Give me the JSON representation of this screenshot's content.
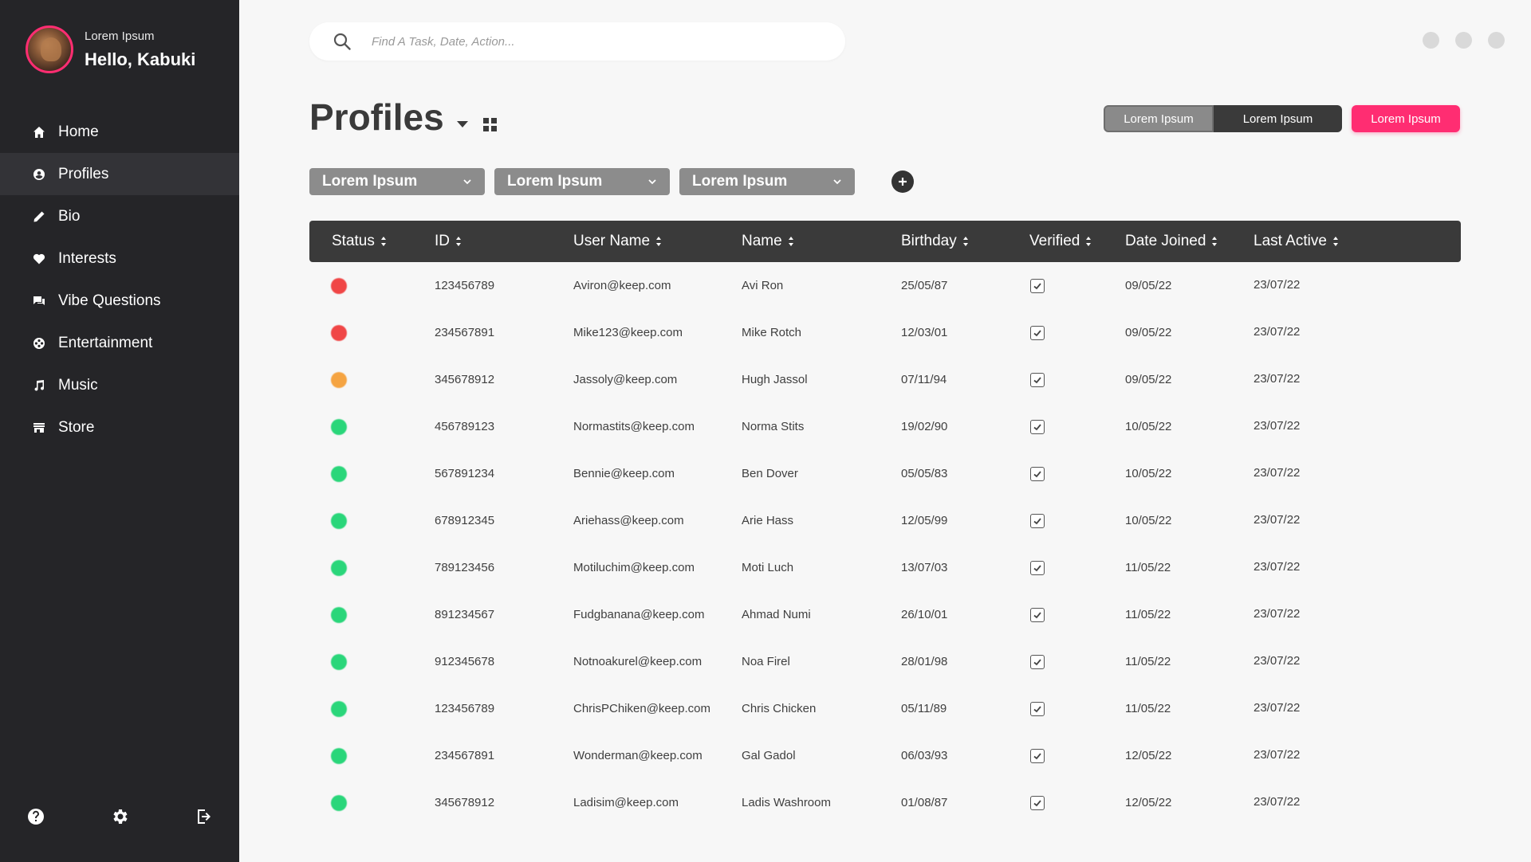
{
  "sidebar": {
    "user": {
      "greeting_small": "Lorem Ipsum",
      "greeting": "Hello, Kabuki"
    },
    "items": [
      {
        "label": "Home",
        "icon": "home-icon"
      },
      {
        "label": "Profiles",
        "icon": "user-circle-icon",
        "active": true
      },
      {
        "label": "Bio",
        "icon": "pencil-icon"
      },
      {
        "label": "Interests",
        "icon": "heart-icon"
      },
      {
        "label": "Vibe Questions",
        "icon": "chat-icon"
      },
      {
        "label": "Entertainment",
        "icon": "film-reel-icon"
      },
      {
        "label": "Music",
        "icon": "music-note-icon"
      },
      {
        "label": "Store",
        "icon": "store-icon"
      }
    ],
    "bottom_icons": [
      "help-icon",
      "gear-icon",
      "logout-icon"
    ]
  },
  "search": {
    "placeholder": "Find A Task, Date, Action..."
  },
  "page": {
    "title": "Profiles"
  },
  "segmented": {
    "a": "Lorem Ipsum",
    "b": "Lorem Ipsum",
    "c": "Lorem Ipsum"
  },
  "filters": [
    "Lorem Ipsum",
    "Lorem Ipsum",
    "Lorem Ipsum"
  ],
  "colors": {
    "accent": "#ff2d72",
    "red": "#f04646",
    "orange": "#f5a442",
    "green": "#2ad67a",
    "sidebar": "#252528",
    "header": "#3a3a3a"
  },
  "table": {
    "headers": {
      "status": "Status",
      "id": "ID",
      "username": "User Name",
      "name": "Name",
      "birthday": "Birthday",
      "verified": "Verified",
      "joined": "Date Joined",
      "active": "Last Active"
    },
    "rows": [
      {
        "status": "red",
        "id": "123456789",
        "username": "Aviron@keep.com",
        "name": "Avi Ron",
        "birthday": "25/05/87",
        "verified": true,
        "joined": "09/05/22",
        "active": "23/07/22"
      },
      {
        "status": "red",
        "id": "234567891",
        "username": "Mike123@keep.com",
        "name": "Mike Rotch",
        "birthday": "12/03/01",
        "verified": true,
        "joined": "09/05/22",
        "active": "23/07/22"
      },
      {
        "status": "orange",
        "id": "345678912",
        "username": "Jassoly@keep.com",
        "name": "Hugh Jassol",
        "birthday": "07/11/94",
        "verified": true,
        "joined": "09/05/22",
        "active": "23/07/22"
      },
      {
        "status": "green",
        "id": "456789123",
        "username": "Normastits@keep.com",
        "name": "Norma Stits",
        "birthday": "19/02/90",
        "verified": true,
        "joined": "10/05/22",
        "active": "23/07/22"
      },
      {
        "status": "green",
        "id": "567891234",
        "username": "Bennie@keep.com",
        "name": "Ben Dover",
        "birthday": "05/05/83",
        "verified": true,
        "joined": "10/05/22",
        "active": "23/07/22"
      },
      {
        "status": "green",
        "id": "678912345",
        "username": "Ariehass@keep.com",
        "name": "Arie Hass",
        "birthday": "12/05/99",
        "verified": true,
        "joined": "10/05/22",
        "active": "23/07/22"
      },
      {
        "status": "green",
        "id": "789123456",
        "username": "Motiluchim@keep.com",
        "name": "Moti Luch",
        "birthday": "13/07/03",
        "verified": true,
        "joined": "11/05/22",
        "active": "23/07/22"
      },
      {
        "status": "green",
        "id": "891234567",
        "username": "Fudgbanana@keep.com",
        "name": "Ahmad Numi",
        "birthday": "26/10/01",
        "verified": true,
        "joined": "11/05/22",
        "active": "23/07/22"
      },
      {
        "status": "green",
        "id": "912345678",
        "username": "Notnoakurel@keep.com",
        "name": "Noa Firel",
        "birthday": "28/01/98",
        "verified": true,
        "joined": "11/05/22",
        "active": "23/07/22"
      },
      {
        "status": "green",
        "id": "123456789",
        "username": "ChrisPChiken@keep.com",
        "name": "Chris Chicken",
        "birthday": "05/11/89",
        "verified": true,
        "joined": "11/05/22",
        "active": "23/07/22"
      },
      {
        "status": "green",
        "id": "234567891",
        "username": "Wonderman@keep.com",
        "name": "Gal Gadol",
        "birthday": "06/03/93",
        "verified": true,
        "joined": "12/05/22",
        "active": "23/07/22"
      },
      {
        "status": "green",
        "id": "345678912",
        "username": "Ladisim@keep.com",
        "name": "Ladis Washroom",
        "birthday": "01/08/87",
        "verified": true,
        "joined": "12/05/22",
        "active": "23/07/22"
      }
    ]
  }
}
